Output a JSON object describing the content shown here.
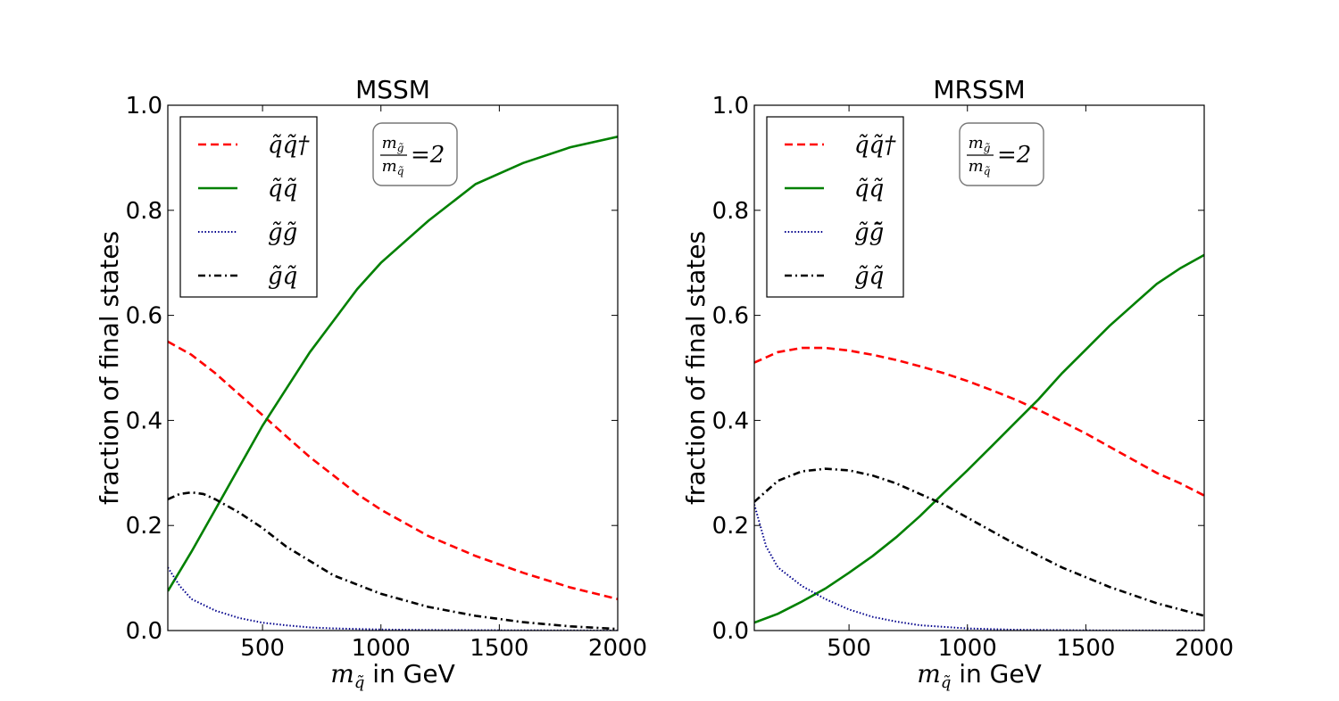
{
  "chart_data": [
    {
      "type": "line",
      "title": "MSSM",
      "xlabel": "in GeV",
      "xlabel_math": "m",
      "xlabel_sub": "q̃",
      "ylabel": "fraction of final states",
      "xlim": [
        100,
        2000
      ],
      "ylim": [
        0,
        1
      ],
      "xticks": [
        500,
        1000,
        1500,
        2000
      ],
      "xtick_labels": [
        "500",
        "1000",
        "1500",
        "2000"
      ],
      "yticks": [
        0,
        0.2,
        0.4,
        0.6,
        0.8,
        1.0
      ],
      "ytick_labels": [
        "0.0",
        "0.2",
        "0.4",
        "0.6",
        "0.8",
        "1.0"
      ],
      "grid": false,
      "legend_position": "upper-left",
      "annotation": {
        "num": "m",
        "num_sub": "g̃",
        "den": "m",
        "den_sub": "q̃",
        "eq": "=2"
      },
      "series": [
        {
          "name": "q̃q̃†",
          "color": "#ff0000",
          "dash": "dashed",
          "x": [
            100,
            200,
            300,
            400,
            500,
            600,
            700,
            800,
            900,
            1000,
            1200,
            1400,
            1600,
            1800,
            2000
          ],
          "y": [
            0.55,
            0.525,
            0.49,
            0.45,
            0.41,
            0.37,
            0.33,
            0.295,
            0.26,
            0.23,
            0.18,
            0.142,
            0.11,
            0.082,
            0.06
          ]
        },
        {
          "name": "q̃q̃",
          "color": "#008000",
          "dash": "solid",
          "x": [
            100,
            200,
            300,
            400,
            500,
            600,
            700,
            800,
            900,
            1000,
            1200,
            1400,
            1600,
            1800,
            2000
          ],
          "y": [
            0.075,
            0.15,
            0.23,
            0.31,
            0.39,
            0.46,
            0.53,
            0.59,
            0.65,
            0.7,
            0.78,
            0.85,
            0.89,
            0.92,
            0.94
          ]
        },
        {
          "name": "g̃g̃",
          "color": "#00008b",
          "dash": "dotted",
          "x": [
            100,
            150,
            200,
            300,
            400,
            500,
            600,
            700,
            800,
            1000,
            1200,
            1500,
            2000
          ],
          "y": [
            0.12,
            0.085,
            0.06,
            0.038,
            0.024,
            0.015,
            0.01,
            0.006,
            0.004,
            0.002,
            0.001,
            0.0005,
            0
          ]
        },
        {
          "name": "g̃q̃",
          "color": "#000000",
          "dash": "dashdot",
          "x": [
            100,
            150,
            200,
            250,
            300,
            400,
            500,
            600,
            800,
            1000,
            1200,
            1400,
            1600,
            1800,
            2000
          ],
          "y": [
            0.25,
            0.26,
            0.263,
            0.26,
            0.25,
            0.225,
            0.195,
            0.16,
            0.105,
            0.07,
            0.045,
            0.028,
            0.016,
            0.008,
            0.003
          ]
        }
      ]
    },
    {
      "type": "line",
      "title": "MRSSM",
      "xlabel": "in GeV",
      "xlabel_math": "m",
      "xlabel_sub": "q̃",
      "ylabel": "fraction of final states",
      "xlim": [
        100,
        2000
      ],
      "ylim": [
        0,
        1
      ],
      "xticks": [
        500,
        1000,
        1500,
        2000
      ],
      "xtick_labels": [
        "500",
        "1000",
        "1500",
        "2000"
      ],
      "yticks": [
        0,
        0.2,
        0.4,
        0.6,
        0.8,
        1.0
      ],
      "ytick_labels": [
        "0.0",
        "0.2",
        "0.4",
        "0.6",
        "0.8",
        "1.0"
      ],
      "grid": false,
      "legend_position": "upper-left",
      "annotation": {
        "num": "m",
        "num_sub": "g̃",
        "den": "m",
        "den_sub": "q̃",
        "eq": "=2"
      },
      "series": [
        {
          "name": "q̃q̃†",
          "color": "#ff0000",
          "dash": "dashed",
          "x": [
            100,
            200,
            300,
            400,
            500,
            600,
            700,
            800,
            900,
            1000,
            1100,
            1200,
            1300,
            1400,
            1500,
            1600,
            1700,
            1800,
            1900,
            2000
          ],
          "y": [
            0.51,
            0.53,
            0.538,
            0.538,
            0.533,
            0.525,
            0.515,
            0.503,
            0.49,
            0.475,
            0.458,
            0.44,
            0.42,
            0.398,
            0.375,
            0.35,
            0.325,
            0.3,
            0.28,
            0.257
          ]
        },
        {
          "name": "q̃q̃",
          "color": "#008000",
          "dash": "solid",
          "x": [
            100,
            200,
            300,
            400,
            500,
            600,
            700,
            800,
            900,
            1000,
            1100,
            1200,
            1300,
            1400,
            1500,
            1600,
            1700,
            1800,
            1900,
            2000
          ],
          "y": [
            0.015,
            0.032,
            0.055,
            0.08,
            0.11,
            0.142,
            0.178,
            0.218,
            0.262,
            0.305,
            0.35,
            0.395,
            0.44,
            0.49,
            0.535,
            0.58,
            0.62,
            0.66,
            0.69,
            0.715
          ]
        },
        {
          "name": "g̃g̃̄",
          "color": "#00008b",
          "dash": "dotted",
          "x": [
            100,
            150,
            200,
            300,
            400,
            500,
            600,
            700,
            800,
            1000,
            1200,
            1500,
            2000
          ],
          "y": [
            0.24,
            0.16,
            0.12,
            0.085,
            0.06,
            0.04,
            0.026,
            0.017,
            0.01,
            0.004,
            0.0015,
            0.0003,
            0
          ]
        },
        {
          "name": "g̃q̃",
          "color": "#000000",
          "dash": "dashdot",
          "x": [
            100,
            200,
            300,
            400,
            500,
            600,
            700,
            800,
            900,
            1000,
            1100,
            1200,
            1400,
            1600,
            1800,
            2000
          ],
          "y": [
            0.245,
            0.285,
            0.303,
            0.308,
            0.305,
            0.295,
            0.28,
            0.26,
            0.24,
            0.215,
            0.19,
            0.165,
            0.12,
            0.083,
            0.052,
            0.028
          ]
        }
      ]
    }
  ]
}
